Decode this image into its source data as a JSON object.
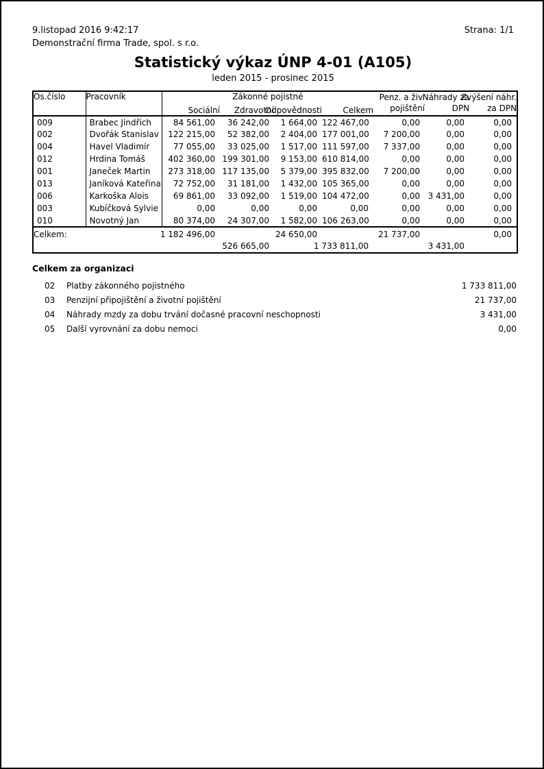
{
  "header": {
    "datetime": "9.listopad 2016  9:42:17",
    "company": "Demonstrační firma Trade, spol. s r.o.",
    "page_label": "Strana: 1/1",
    "title": "Statistický výkaz ÚNP 4-01 (A105)",
    "period": "leden 2015 - prosinec 2015"
  },
  "table": {
    "headers": {
      "os_cislo": "Os.číslo",
      "pracovnik": "Pracovník",
      "group": "Zákonné pojistné",
      "socialni": "Sociální",
      "zdravotni": "Zdravotní",
      "odpovednosti": "Odpovědnosti",
      "celkem": "Celkem",
      "penz_line1": "Penz. a živ.",
      "penz_line2": "pojištění",
      "nahrady_line1": "Náhrady za",
      "nahrady_line2": "DPN",
      "zvyseni_line1": "Zvýšení náhr.",
      "zvyseni_line2": "za DPN"
    },
    "rows": [
      {
        "id": "009",
        "name": "Brabec Jindřich",
        "socialni": "84 561,00",
        "zdravotni": "36 242,00",
        "odpovednosti": "1 664,00",
        "celkem": "122 467,00",
        "penz": "0,00",
        "nahrady": "0,00",
        "zvyseni": "0,00"
      },
      {
        "id": "002",
        "name": "Dvořák Stanislav",
        "socialni": "122 215,00",
        "zdravotni": "52 382,00",
        "odpovednosti": "2 404,00",
        "celkem": "177 001,00",
        "penz": "7 200,00",
        "nahrady": "0,00",
        "zvyseni": "0,00"
      },
      {
        "id": "004",
        "name": "Havel Vladimír",
        "socialni": "77 055,00",
        "zdravotni": "33 025,00",
        "odpovednosti": "1 517,00",
        "celkem": "111 597,00",
        "penz": "7 337,00",
        "nahrady": "0,00",
        "zvyseni": "0,00"
      },
      {
        "id": "012",
        "name": "Hrdina Tomáš",
        "socialni": "402 360,00",
        "zdravotni": "199 301,00",
        "odpovednosti": "9 153,00",
        "celkem": "610 814,00",
        "penz": "0,00",
        "nahrady": "0,00",
        "zvyseni": "0,00"
      },
      {
        "id": "001",
        "name": "Janeček Martin",
        "socialni": "273 318,00",
        "zdravotni": "117 135,00",
        "odpovednosti": "5 379,00",
        "celkem": "395 832,00",
        "penz": "7 200,00",
        "nahrady": "0,00",
        "zvyseni": "0,00"
      },
      {
        "id": "013",
        "name": "Janíková Kateřina",
        "socialni": "72 752,00",
        "zdravotni": "31 181,00",
        "odpovednosti": "1 432,00",
        "celkem": "105 365,00",
        "penz": "0,00",
        "nahrady": "0,00",
        "zvyseni": "0,00"
      },
      {
        "id": "006",
        "name": "Karkoška Alois",
        "socialni": "69 861,00",
        "zdravotni": "33 092,00",
        "odpovednosti": "1 519,00",
        "celkem": "104 472,00",
        "penz": "0,00",
        "nahrady": "3 431,00",
        "zvyseni": "0,00"
      },
      {
        "id": "003",
        "name": "Kubíčková Sylvie",
        "socialni": "0,00",
        "zdravotni": "0,00",
        "odpovednosti": "0,00",
        "celkem": "0,00",
        "penz": "0,00",
        "nahrady": "0,00",
        "zvyseni": "0,00"
      },
      {
        "id": "010",
        "name": "Novotný Jan",
        "socialni": "80 374,00",
        "zdravotni": "24 307,00",
        "odpovednosti": "1 582,00",
        "celkem": "106 263,00",
        "penz": "0,00",
        "nahrady": "0,00",
        "zvyseni": "0,00"
      }
    ],
    "totals": {
      "label": "Celkem:",
      "socialni": "1 182 496,00",
      "zdravotni": "526 665,00",
      "odpovednosti": "24 650,00",
      "celkem": "1 733 811,00",
      "penz": "21 737,00",
      "nahrady": "3 431,00",
      "zvyseni": "0,00"
    }
  },
  "summary": {
    "title": "Celkem za organizaci",
    "rows": [
      {
        "code": "02",
        "label": "Platby zákonného pojistného",
        "value": "1 733 811,00"
      },
      {
        "code": "03",
        "label": "Penzijní připojištění a životní pojištění",
        "value": "21 737,00"
      },
      {
        "code": "04",
        "label": "Náhrady mzdy za dobu trvání dočasné pracovní neschopnosti",
        "value": "3 431,00"
      },
      {
        "code": "05",
        "label": "Další vyrovnání za dobu nemoci",
        "value": "0,00"
      }
    ]
  }
}
